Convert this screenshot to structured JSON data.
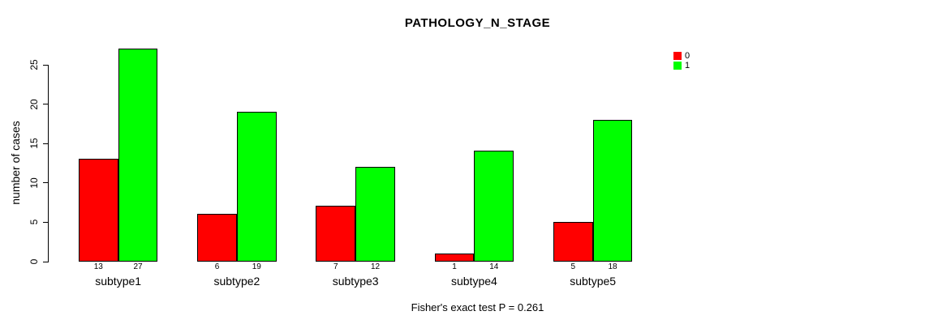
{
  "chart_data": {
    "type": "bar",
    "title": "PATHOLOGY_N_STAGE",
    "xlabel": "",
    "ylabel": "number of cases",
    "categories": [
      "subtype1",
      "subtype2",
      "subtype3",
      "subtype4",
      "subtype5"
    ],
    "series": [
      {
        "name": "0",
        "color": "#ff0000",
        "values": [
          13,
          6,
          7,
          1,
          5
        ]
      },
      {
        "name": "1",
        "color": "#00ff00",
        "values": [
          27,
          19,
          12,
          14,
          18
        ]
      }
    ],
    "y_ticks": [
      0,
      5,
      10,
      15,
      20,
      25
    ],
    "ylim": [
      0,
      25
    ],
    "grid": false,
    "legend_position": "top-right",
    "footnote": "Fisher's exact test P = 0.261"
  },
  "colors": {
    "series0": "#ff0000",
    "series1": "#00ff00",
    "axis": "#000000",
    "background": "#ffffff"
  }
}
